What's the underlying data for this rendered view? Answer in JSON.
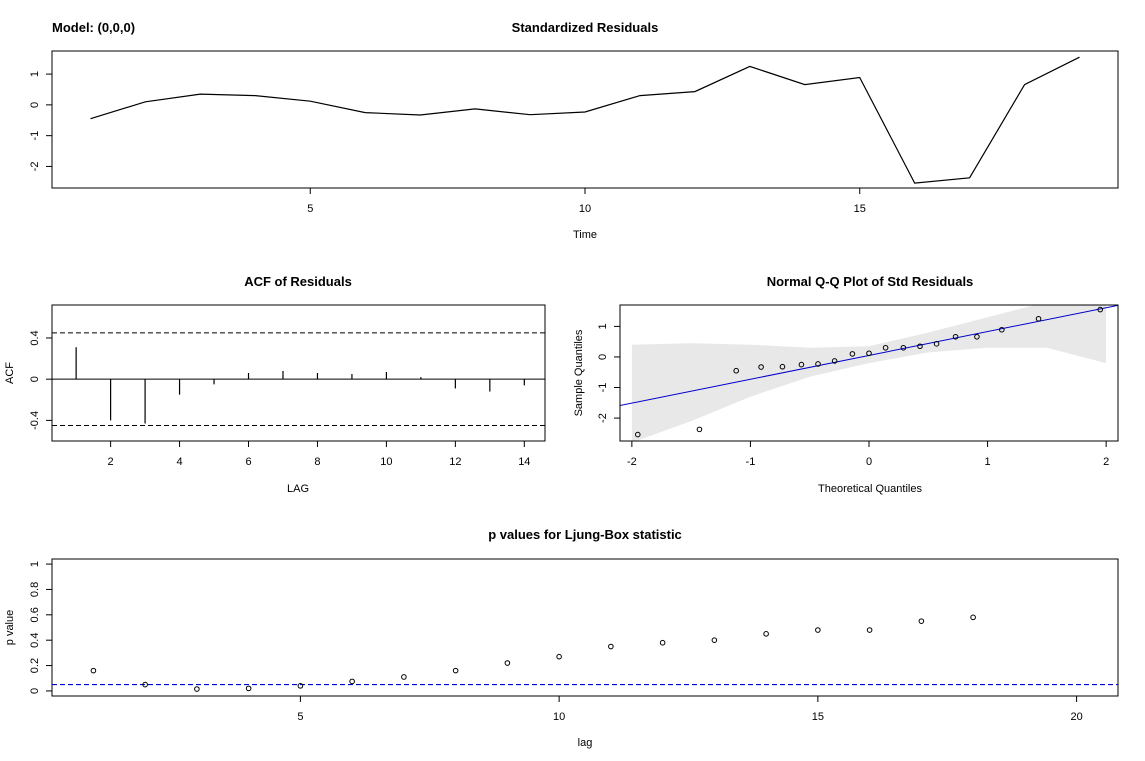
{
  "model_label": "Model: (0,0,0)",
  "chart_data": [
    {
      "type": "line",
      "title": "Standardized Residuals",
      "xlabel": "Time",
      "ylabel": "",
      "x": [
        1,
        2,
        3,
        4,
        5,
        6,
        7,
        8,
        9,
        10,
        11,
        12,
        13,
        14,
        15,
        16,
        17,
        18,
        19
      ],
      "values": [
        -0.45,
        0.1,
        0.35,
        0.3,
        0.12,
        -0.25,
        -0.33,
        -0.13,
        -0.32,
        -0.23,
        0.3,
        0.43,
        1.25,
        0.66,
        0.89,
        -2.54,
        -2.37,
        0.66,
        1.55
      ],
      "xlim": [
        0.3,
        19.7
      ],
      "ylim": [
        -2.7,
        1.75
      ],
      "xticks": [
        5,
        10,
        15
      ],
      "yticks": [
        -2,
        -1,
        0,
        1
      ],
      "grid": false
    },
    {
      "type": "bar",
      "title": "ACF of Residuals",
      "xlabel": "LAG",
      "ylabel": "ACF",
      "x": [
        1,
        2,
        3,
        4,
        5,
        6,
        7,
        8,
        9,
        10,
        11,
        12,
        13,
        14
      ],
      "values": [
        0.31,
        -0.4,
        -0.43,
        -0.15,
        -0.05,
        0.06,
        0.08,
        0.06,
        0.05,
        0.07,
        0.02,
        -0.09,
        -0.12,
        -0.06
      ],
      "confidence_bounds": [
        -0.45,
        0.45
      ],
      "xlim": [
        0.3,
        14.6
      ],
      "ylim": [
        -0.6,
        0.72
      ],
      "xticks": [
        2,
        4,
        6,
        8,
        10,
        12,
        14
      ],
      "yticks": [
        -0.4,
        0.0,
        0.4
      ],
      "grid": false
    },
    {
      "type": "scatter",
      "title": "Normal Q-Q Plot of Std Residuals",
      "xlabel": "Theoretical Quantiles",
      "ylabel": "Sample Quantiles",
      "points": [
        [
          -1.95,
          -2.54
        ],
        [
          -1.43,
          -2.37
        ],
        [
          -1.12,
          -0.45
        ],
        [
          -0.91,
          -0.33
        ],
        [
          -0.73,
          -0.32
        ],
        [
          -0.57,
          -0.25
        ],
        [
          -0.43,
          -0.23
        ],
        [
          -0.29,
          -0.13
        ],
        [
          -0.14,
          0.1
        ],
        [
          0.0,
          0.12
        ],
        [
          0.14,
          0.3
        ],
        [
          0.29,
          0.3
        ],
        [
          0.43,
          0.35
        ],
        [
          0.57,
          0.43
        ],
        [
          0.73,
          0.66
        ],
        [
          0.91,
          0.66
        ],
        [
          1.12,
          0.89
        ],
        [
          1.43,
          1.25
        ],
        [
          1.95,
          1.55
        ]
      ],
      "reference_line": {
        "intercept": 0.05,
        "slope": 0.78
      },
      "confidence_band": {
        "x": [
          -2.0,
          -1.5,
          -1.0,
          -0.5,
          0.0,
          0.5,
          1.0,
          1.5,
          2.0
        ],
        "lower": [
          -2.8,
          -2.1,
          -1.3,
          -0.65,
          -0.2,
          0.15,
          0.3,
          0.3,
          -0.2
        ],
        "upper": [
          0.4,
          0.45,
          0.4,
          0.3,
          0.35,
          0.8,
          1.3,
          1.8,
          2.1
        ]
      },
      "xlim": [
        -2.1,
        2.1
      ],
      "ylim": [
        -2.75,
        1.7
      ],
      "xticks": [
        -2,
        -1,
        0,
        1,
        2
      ],
      "yticks": [
        -2,
        -1,
        0,
        1
      ],
      "line_color": "#0000cc",
      "band_color": "#e8e8e8",
      "grid": false
    },
    {
      "type": "scatter",
      "title": "p values for Ljung-Box statistic",
      "xlabel": "lag",
      "ylabel": "p value",
      "x": [
        1,
        2,
        3,
        4,
        5,
        6,
        7,
        8,
        9,
        10,
        11,
        12,
        13,
        14,
        15,
        16,
        17,
        18
      ],
      "values": [
        0.16,
        0.05,
        0.015,
        0.02,
        0.04,
        0.075,
        0.11,
        0.16,
        0.22,
        0.27,
        0.35,
        0.38,
        0.4,
        0.45,
        0.48,
        0.48,
        0.55,
        0.58
      ],
      "significance_line": 0.05,
      "xlim": [
        0.2,
        20.8
      ],
      "ylim": [
        -0.04,
        1.04
      ],
      "xticks": [
        5,
        10,
        15,
        20
      ],
      "yticks": [
        0.0,
        0.2,
        0.4,
        0.6,
        0.8,
        1.0
      ],
      "line_color": "#0000cc",
      "grid": false
    }
  ]
}
